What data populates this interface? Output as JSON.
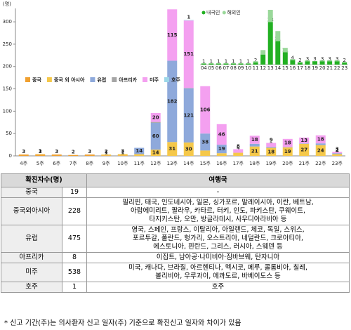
{
  "chart_data": {
    "type": "stacked_bar",
    "unit": "(명)",
    "categories": [
      "4주",
      "5주",
      "6주",
      "7주",
      "8주",
      "9주",
      "10주",
      "11주",
      "12주",
      "13주",
      "14주",
      "15주",
      "16주",
      "17주",
      "18주",
      "19주",
      "20주",
      "21주",
      "22주",
      "23주"
    ],
    "series": [
      {
        "name": "중국",
        "color": "#f0a030",
        "values": [
          3,
          3,
          3,
          2,
          3,
          1,
          1,
          0,
          0,
          0,
          0,
          0,
          0,
          0,
          0,
          0,
          0,
          0,
          0,
          0
        ]
      },
      {
        "name": "중국 외 아시아",
        "color": "#f5c84a",
        "values": [
          0,
          1,
          0,
          0,
          0,
          2,
          3,
          4,
          14,
          31,
          30,
          12,
          6,
          7,
          21,
          18,
          19,
          27,
          24,
          4
        ]
      },
      {
        "name": "유럽",
        "color": "#8ea9db",
        "values": [
          0,
          0,
          0,
          0,
          0,
          0,
          0,
          14,
          60,
          182,
          121,
          38,
          19,
          0,
          6,
          2,
          1,
          1,
          4,
          2
        ]
      },
      {
        "name": "아프리카",
        "color": "#a5a5a5",
        "values": [
          0,
          0,
          0,
          0,
          0,
          0,
          0,
          0,
          2,
          0,
          1,
          0,
          0,
          0,
          0,
          0,
          0,
          0,
          0,
          0
        ]
      },
      {
        "name": "미주",
        "color": "#f4a0f0",
        "values": [
          0,
          0,
          0,
          0,
          0,
          0,
          0,
          0,
          20,
          115,
          151,
          106,
          46,
          8,
          18,
          9,
          18,
          13,
          18,
          3
        ]
      },
      {
        "name": "호주",
        "color": "#9dd7e8",
        "values": [
          0,
          0,
          0,
          0,
          0,
          0,
          0,
          0,
          0,
          0,
          1,
          0,
          0,
          0,
          0,
          0,
          0,
          0,
          0,
          0
        ]
      }
    ],
    "ylim": [
      0,
      330
    ],
    "yticks": [
      0,
      50,
      100,
      150,
      200,
      250,
      300
    ],
    "inset": {
      "type": "stacked_bar",
      "categories": [
        "04",
        "05",
        "06",
        "07",
        "08",
        "09",
        "10",
        "11",
        "12",
        "13",
        "14",
        "15",
        "16",
        "17",
        "18",
        "19",
        "20",
        "21",
        "22",
        "23"
      ],
      "series": [
        {
          "name": "내국인",
          "color": "#22b022",
          "values": [
            1,
            1,
            1,
            1,
            1,
            1,
            1,
            2,
            9,
            38,
            21,
            11,
            4,
            2,
            3,
            3,
            3,
            3,
            3,
            2
          ]
        },
        {
          "name": "해외인",
          "color": "#9ad89a",
          "values": [
            0,
            0,
            0,
            0,
            0,
            0,
            0,
            1,
            4,
            11,
            9,
            4,
            1,
            0,
            1,
            0,
            1,
            1,
            1,
            0
          ]
        }
      ]
    }
  },
  "table": {
    "header": [
      "확진자수(명)",
      "여행국"
    ],
    "rows": [
      [
        "중국",
        "19",
        [
          "-"
        ]
      ],
      [
        "중국외아시아",
        "228",
        [
          "필리핀, 태국, 인도네시아, 일본, 싱가포르, 말레이시아, 이란, 베트남,",
          "아랍에미리트, 팔라우, 카타르, 터키, 인도, 파키스탄, 쿠웨이트,",
          "타지키스탄, 오만, 방글라데시, 사우디아라비아 등"
        ]
      ],
      [
        "유럽",
        "475",
        [
          "영국, 스페인, 프랑스, 이탈리아, 아일랜드, 체코, 독일, 스위스,",
          "포르투갈, 폴란드, 헝가리, 오스트리아, 네덜란드, 크로아티아,",
          "에스토니아, 핀란드, 그리스, 러시아, 스웨덴 등"
        ]
      ],
      [
        "아프리카",
        "8",
        [
          "이집트, 남아공·나미비아·짐바브웨, 탄자니아"
        ]
      ],
      [
        "미주",
        "538",
        [
          "미국, 캐나다, 브라질, 아르헨티나, 멕시코, 페루, 콜롬비아, 칠레,",
          "볼리비아, 우루과이, 에콰도르, 바베이도스 등"
        ]
      ],
      [
        "호주",
        "1",
        [
          "호주"
        ]
      ]
    ]
  },
  "footnote": "* 신고 기간(주)는 의사환자 신고 일자(주) 기준으로 확진신고 일자와 차이가 있음"
}
